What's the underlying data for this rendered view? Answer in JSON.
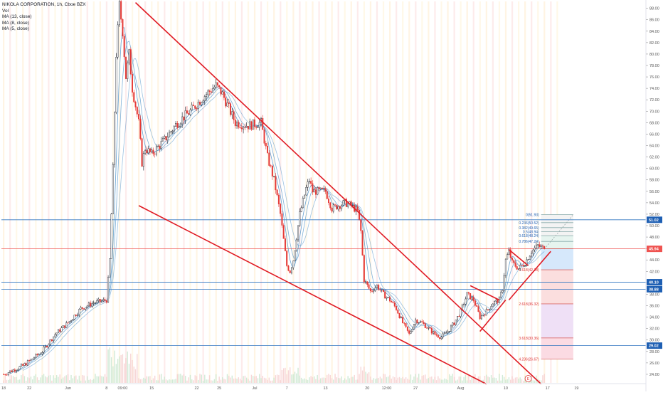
{
  "header": {
    "title": "NIKOLA CORPORATION, 1h, Cboe BZX",
    "indicators": [
      "Vol",
      "MA (13, close)",
      "MA (8, close)",
      "MA (5, close)"
    ]
  },
  "colors": {
    "background": "#ffffff",
    "grid": "#f0f2f6",
    "up": "#131722",
    "down": "#e53935",
    "trendline": "#e01b24",
    "ma": "#4a90c8",
    "hline_blue": "#2f74c0",
    "hline_red": "#ef5350",
    "axis_text": "#555555",
    "label_blue": "#1e5fb3",
    "label_red": "#ef5350"
  },
  "chart_data": {
    "type": "candlestick",
    "title": "NIKOLA CORPORATION, 1h, Cboe BZX",
    "x_unit": "trading day index (0 = May 15)",
    "xlim": [
      0,
      87
    ],
    "ylim": [
      22.5,
      89.2
    ],
    "y_ticks": [
      24,
      26,
      28,
      30,
      32,
      34,
      36,
      38,
      40,
      42,
      44,
      46,
      48,
      50,
      52,
      54,
      56,
      58,
      60,
      62,
      64,
      66,
      68,
      70,
      72,
      74,
      76,
      78,
      80,
      82,
      84,
      86,
      88
    ],
    "y_tick_labels": [
      "24.00",
      "26.00",
      "28.00",
      "30.00",
      "32.00",
      "34.00",
      "36.00",
      "38.00",
      "40.00",
      "42.00",
      "44.00",
      "46.00",
      "48.00",
      "50.00",
      "52.00",
      "54.00",
      "56.00",
      "58.00",
      "60.00",
      "62.00",
      "64.00",
      "66.00",
      "68.00",
      "70.00",
      "72.00",
      "74.00",
      "76.00",
      "78.00",
      "80.00",
      "82.00",
      "84.00",
      "86.00",
      "88.00"
    ],
    "x_tick_labels": [
      {
        "x": 0,
        "label": "18"
      },
      {
        "x": 4,
        "label": "22"
      },
      {
        "x": 10,
        "label": "Jun"
      },
      {
        "x": 16,
        "label": "8"
      },
      {
        "x": 18.5,
        "label": "09:00"
      },
      {
        "x": 23,
        "label": "15"
      },
      {
        "x": 30,
        "label": "22"
      },
      {
        "x": 33.5,
        "label": "25"
      },
      {
        "x": 39,
        "label": "Jul"
      },
      {
        "x": 44,
        "label": "7"
      },
      {
        "x": 50,
        "label": "13"
      },
      {
        "x": 56.5,
        "label": "20"
      },
      {
        "x": 59.5,
        "label": "12:00"
      },
      {
        "x": 64,
        "label": "27"
      },
      {
        "x": 71,
        "label": "Aug"
      },
      {
        "x": 78,
        "label": "10"
      },
      {
        "x": 84.5,
        "label": "17"
      },
      {
        "x": 89,
        "label": "19"
      }
    ],
    "price_path": [
      [
        0,
        24.0
      ],
      [
        3,
        25.5
      ],
      [
        6,
        28.0
      ],
      [
        8,
        31.0
      ],
      [
        10,
        33.0
      ],
      [
        12,
        35.5
      ],
      [
        14,
        36.5
      ],
      [
        16,
        37.0
      ],
      [
        16.5,
        44.0
      ],
      [
        17,
        60.0
      ],
      [
        17.5,
        80.0
      ],
      [
        18,
        88.5
      ],
      [
        18.5,
        84.0
      ],
      [
        19,
        76.0
      ],
      [
        19.5,
        80.0
      ],
      [
        20,
        74.0
      ],
      [
        21,
        68.0
      ],
      [
        21.5,
        61.0
      ],
      [
        22,
        63.5
      ],
      [
        23,
        62.5
      ],
      [
        25,
        65.0
      ],
      [
        27,
        68.0
      ],
      [
        29,
        70.0
      ],
      [
        31,
        72.5
      ],
      [
        33,
        74.5
      ],
      [
        34,
        73.0
      ],
      [
        35,
        70.5
      ],
      [
        36,
        68.0
      ],
      [
        38,
        67.5
      ],
      [
        40,
        68.0
      ],
      [
        41,
        62.0
      ],
      [
        42,
        58.0
      ],
      [
        43,
        52.0
      ],
      [
        44,
        43.0
      ],
      [
        44.5,
        42.0
      ],
      [
        45,
        44.0
      ],
      [
        46,
        52.0
      ],
      [
        47,
        56.5
      ],
      [
        47.5,
        58.0
      ],
      [
        48,
        56.0
      ],
      [
        50,
        56.0
      ],
      [
        51,
        53.0
      ],
      [
        53,
        54.0
      ],
      [
        54,
        53.5
      ],
      [
        55,
        52.5
      ],
      [
        55.5,
        49.0
      ],
      [
        56,
        40.5
      ],
      [
        57,
        38.5
      ],
      [
        58,
        39.5
      ],
      [
        59,
        38.0
      ],
      [
        60,
        37.0
      ],
      [
        61,
        35.5
      ],
      [
        62,
        33.0
      ],
      [
        63,
        31.0
      ],
      [
        64,
        33.5
      ],
      [
        65,
        33.0
      ],
      [
        66,
        32.0
      ],
      [
        67,
        31.0
      ],
      [
        68,
        30.5
      ],
      [
        69,
        31.5
      ],
      [
        70,
        33.0
      ],
      [
        71,
        35.0
      ],
      [
        72,
        38.0
      ],
      [
        73,
        37.0
      ],
      [
        74,
        34.0
      ],
      [
        75,
        35.0
      ],
      [
        76,
        36.5
      ],
      [
        77,
        37.0
      ],
      [
        77.5,
        39.0
      ],
      [
        78,
        44.0
      ],
      [
        78.5,
        45.5
      ],
      [
        79,
        43.5
      ],
      [
        80,
        42.5
      ],
      [
        81,
        43.5
      ],
      [
        82,
        45.5
      ],
      [
        83,
        46.5
      ],
      [
        84,
        45.94
      ]
    ],
    "moving_averages": [
      {
        "name": "MA (13, close)",
        "period": 13
      },
      {
        "name": "MA (8, close)",
        "period": 8
      },
      {
        "name": "MA (5, close)",
        "period": 5
      }
    ],
    "trendlines": [
      {
        "from": [
          20.5,
          89.0
        ],
        "to": [
          83.5,
          22.3
        ]
      },
      {
        "from": [
          21,
          53.5
        ],
        "to": [
          75,
          22.3
        ]
      },
      {
        "from": [
          72.5,
          39.5
        ],
        "to": [
          77,
          37.0
        ]
      },
      {
        "from": [
          74,
          31.5
        ],
        "to": [
          78,
          37.0
        ]
      },
      {
        "from": [
          78.5,
          45.8
        ],
        "to": [
          81.5,
          43.0
        ]
      },
      {
        "from": [
          78.5,
          37.0
        ],
        "to": [
          85,
          45.5
        ]
      }
    ],
    "horizontal_levels": [
      {
        "price": 51.02,
        "label": "51.02",
        "color": "blue"
      },
      {
        "price": 45.94,
        "label": "45.94",
        "color": "red"
      },
      {
        "price": 40.1,
        "label": "40.10",
        "color": "blue"
      },
      {
        "price": 38.88,
        "label": "38.88",
        "color": "blue"
      },
      {
        "price": 29.02,
        "label": "29.02",
        "color": "blue"
      }
    ],
    "fibonacci": {
      "x_range": [
        83.5,
        88.5
      ],
      "levels": [
        {
          "ratio": 0,
          "price": 51.93,
          "label": "0(51.93)"
        },
        {
          "ratio": 0.236,
          "price": 50.52,
          "label": "0.236(50.52)"
        },
        {
          "ratio": 0.382,
          "price": 49.65,
          "label": "0.382(49.65)"
        },
        {
          "ratio": 0.5,
          "price": 48.94,
          "label": "0.5(48.94)"
        },
        {
          "ratio": 0.618,
          "price": 48.24,
          "label": "0.618(48.24)"
        },
        {
          "ratio": 0.786,
          "price": 47.24,
          "label": "0.786(47.24)"
        },
        {
          "ratio": 1,
          "price": 45.97,
          "label": "1"
        },
        {
          "ratio": 1.618,
          "price": 42.28,
          "label": "1.618(42.28)"
        },
        {
          "ratio": 2.618,
          "price": 36.32,
          "label": "2.618(36.32)"
        },
        {
          "ratio": 3.618,
          "price": 30.36,
          "label": "3.618(30.36)"
        },
        {
          "ratio": 4.236,
          "price": 26.67,
          "label": "4.236(26.67)"
        }
      ],
      "fills": [
        {
          "from": 51.93,
          "to": 48.24,
          "color": "#f3f3f3"
        },
        {
          "from": 48.24,
          "to": 45.97,
          "color": "#e6f4ef"
        },
        {
          "from": 45.97,
          "to": 42.28,
          "color": "#d6e8fb"
        },
        {
          "from": 42.28,
          "to": 36.32,
          "color": "#fbdede"
        },
        {
          "from": 36.32,
          "to": 30.36,
          "color": "#efe0f6"
        },
        {
          "from": 30.36,
          "to": 26.67,
          "color": "#fbdbe3"
        }
      ]
    },
    "event_marker": {
      "x": 81.5,
      "label": "E"
    },
    "volume": {
      "note": "volume bars along bottom"
    },
    "grid": false,
    "legend": "top-left"
  }
}
